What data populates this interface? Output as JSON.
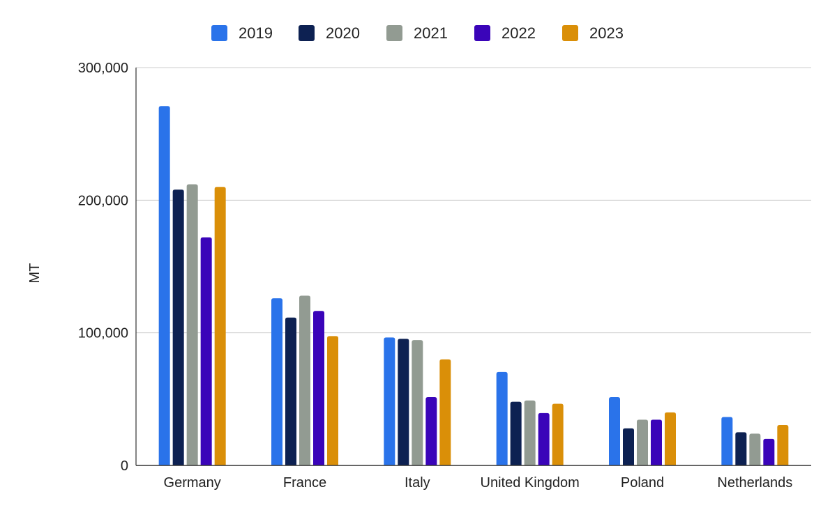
{
  "chart_data": {
    "type": "bar",
    "categories": [
      "Germany",
      "France",
      "Italy",
      "United Kingdom",
      "Poland",
      "Netherlands"
    ],
    "series": [
      {
        "name": "2019",
        "color": "#2a73ea",
        "values": [
          271000,
          126000,
          96500,
          70500,
          51500,
          36500
        ]
      },
      {
        "name": "2020",
        "color": "#0d2152",
        "values": [
          208000,
          111500,
          95500,
          48000,
          28000,
          25000
        ]
      },
      {
        "name": "2021",
        "color": "#929b92",
        "values": [
          212000,
          128000,
          94500,
          49000,
          34500,
          24000
        ]
      },
      {
        "name": "2022",
        "color": "#3a04b9",
        "values": [
          172000,
          116500,
          51500,
          39500,
          34500,
          20000
        ]
      },
      {
        "name": "2023",
        "color": "#da8f08",
        "values": [
          210000,
          97500,
          80000,
          46500,
          40000,
          30500
        ]
      }
    ],
    "title": "",
    "xlabel": "",
    "ylabel": "MT",
    "ylim": [
      0,
      300000
    ],
    "yticks": [
      0,
      100000,
      200000,
      300000
    ],
    "ytick_labels": [
      "0",
      "100,000",
      "200,000",
      "300,000"
    ],
    "grid": true,
    "legend_position": "top-center"
  }
}
